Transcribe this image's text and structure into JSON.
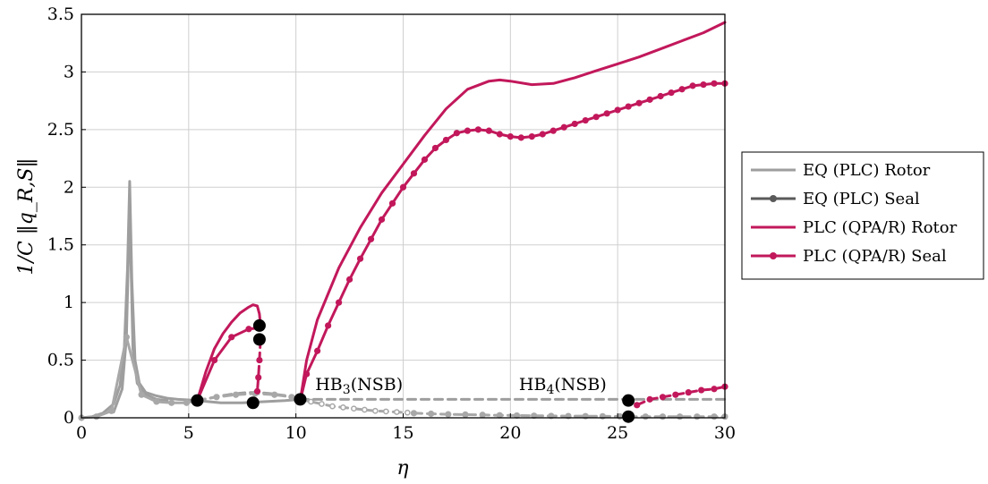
{
  "chart_data": {
    "type": "line",
    "xlabel": "η",
    "ylabel": "1/C ‖q_R,S‖",
    "xlim": [
      0,
      30
    ],
    "ylim": [
      0,
      3.5
    ],
    "x_ticks": [
      "0",
      "5",
      "10",
      "15",
      "20",
      "25",
      "30"
    ],
    "y_ticks": [
      "0",
      "0.5",
      "1",
      "1.5",
      "2",
      "2.5",
      "3",
      "3.5"
    ],
    "grid": true,
    "legend_position": "right",
    "colors": {
      "eq": "#9e9e9e",
      "eq_marker": "#5a5a5a",
      "plc": "#c2185b",
      "bifurcation": "#000000"
    },
    "legend": [
      {
        "label": "EQ (PLC) Rotor",
        "color": "#9e9e9e",
        "marker": false
      },
      {
        "label": "EQ (PLC) Seal",
        "color": "#5a5a5a",
        "marker": true
      },
      {
        "label": "PLC (QPA/R) Rotor",
        "color": "#c2185b",
        "marker": false
      },
      {
        "label": "PLC (QPA/R) Seal",
        "color": "#c2185b",
        "marker": true
      }
    ],
    "annotations": [
      {
        "base": "HB",
        "sub": "3",
        "suffix": "(NSB)",
        "x": 10.9,
        "y": 0.24
      },
      {
        "base": "HB",
        "sub": "4",
        "suffix": "(NSB)",
        "x": 20.4,
        "y": 0.24
      }
    ],
    "series": [
      {
        "name": "EQ (PLC) Rotor",
        "color": "#9e9e9e",
        "dashed": false,
        "markers": false,
        "x": [
          0,
          0.5,
          1,
          1.5,
          1.8,
          2.0,
          2.15,
          2.25,
          2.35,
          2.5,
          2.7,
          3,
          3.5,
          4,
          4.5,
          5,
          5.4
        ],
        "y": [
          0,
          0.01,
          0.04,
          0.12,
          0.28,
          0.6,
          1.3,
          2.05,
          1.2,
          0.5,
          0.3,
          0.22,
          0.19,
          0.17,
          0.16,
          0.155,
          0.15
        ]
      },
      {
        "name": "EQ (PLC) Rotor",
        "color": "#9e9e9e",
        "dashed": false,
        "markers": false,
        "x": [
          1.5,
          1.9,
          2.1,
          2.25,
          2.4,
          2.6,
          3,
          3.5,
          4
        ],
        "y": [
          0.05,
          0.25,
          0.7,
          1.85,
          0.6,
          0.3,
          0.2,
          0.16,
          0.15
        ]
      },
      {
        "name": "EQ (PLC) Rotor",
        "color": "#9e9e9e",
        "dashed": false,
        "markers": false,
        "x": [
          5.4,
          6.5,
          7.5,
          8.5,
          9.5,
          10.2
        ],
        "y": [
          0.15,
          0.13,
          0.13,
          0.14,
          0.15,
          0.16
        ]
      },
      {
        "name": "EQ (PLC) Rotor",
        "color": "#9e9e9e",
        "dashed": true,
        "markers": false,
        "x": [
          10.2,
          15,
          20,
          25,
          30
        ],
        "y": [
          0.16,
          0.16,
          0.16,
          0.16,
          0.16
        ]
      },
      {
        "name": "EQ (PLC) Rotor",
        "color": "#9e9e9e",
        "dashed": true,
        "markers": false,
        "x": [
          5.4,
          6.5,
          7.2,
          7.8,
          8.2,
          8.8,
          9.6,
          10.2
        ],
        "y": [
          0.15,
          0.19,
          0.21,
          0.22,
          0.22,
          0.21,
          0.19,
          0.16
        ]
      },
      {
        "name": "EQ (PLC) Seal",
        "color": "#a8a8a8",
        "dashed": false,
        "markers": true,
        "hollow": false,
        "x": [
          0,
          0.7,
          1.4,
          2.1,
          2.8,
          3.5,
          4.2,
          4.9,
          5.4
        ],
        "y": [
          0,
          0.01,
          0.06,
          0.7,
          0.2,
          0.14,
          0.13,
          0.13,
          0.15
        ]
      },
      {
        "name": "EQ (PLC) Seal",
        "color": "#a8a8a8",
        "dashed": true,
        "markers": true,
        "hollow": false,
        "x": [
          5.4,
          6.3,
          7.2,
          8.1,
          9.0,
          9.8,
          10.2
        ],
        "y": [
          0.15,
          0.18,
          0.2,
          0.21,
          0.2,
          0.18,
          0.16
        ]
      },
      {
        "name": "EQ (PLC) Seal",
        "color": "#a8a8a8",
        "dashed": true,
        "markers": true,
        "hollow": true,
        "x": [
          10.2,
          10.7,
          11.2,
          11.7,
          12.2,
          12.7,
          13.2,
          13.7,
          14.2,
          14.7,
          15.2
        ],
        "y": [
          0.16,
          0.14,
          0.12,
          0.1,
          0.09,
          0.08,
          0.07,
          0.06,
          0.055,
          0.05,
          0.045
        ]
      },
      {
        "name": "EQ (PLC) Seal",
        "color": "#a8a8a8",
        "dashed": true,
        "markers": true,
        "hollow": false,
        "x": [
          15.5,
          16.3,
          17.1,
          17.9,
          18.7,
          19.5,
          20.3,
          21.1,
          21.9,
          22.7,
          23.5,
          24.3,
          25.1
        ],
        "y": [
          0.04,
          0.035,
          0.03,
          0.028,
          0.025,
          0.022,
          0.02,
          0.018,
          0.016,
          0.015,
          0.014,
          0.013,
          0.012
        ]
      },
      {
        "name": "EQ (PLC) Seal",
        "color": "#a8a8a8",
        "dashed": true,
        "markers": true,
        "hollow": false,
        "x": [
          25.5,
          26.3,
          27.1,
          27.9,
          28.7,
          29.5,
          30
        ],
        "y": [
          0.01,
          0.01,
          0.01,
          0.01,
          0.01,
          0.01,
          0.01
        ]
      },
      {
        "name": "PLC (QPA/R) Rotor",
        "color": "#c2185b",
        "dashed": false,
        "markers": false,
        "x": [
          5.4,
          5.8,
          6.2,
          6.6,
          7.0,
          7.4,
          7.8,
          8.0,
          8.2,
          8.3,
          8.35
        ],
        "y": [
          0.15,
          0.4,
          0.6,
          0.73,
          0.83,
          0.91,
          0.96,
          0.98,
          0.97,
          0.9,
          0.8
        ]
      },
      {
        "name": "PLC (QPA/R) Rotor",
        "color": "#c2185b",
        "dashed": false,
        "markers": false,
        "x": [
          10.2,
          10.5,
          11,
          12,
          13,
          14,
          15,
          16,
          17,
          18,
          19,
          19.5,
          20,
          21,
          22,
          23,
          24,
          25,
          26,
          27,
          28,
          29,
          30
        ],
        "y": [
          0.15,
          0.5,
          0.85,
          1.3,
          1.65,
          1.95,
          2.2,
          2.45,
          2.68,
          2.85,
          2.92,
          2.93,
          2.92,
          2.89,
          2.9,
          2.95,
          3.01,
          3.07,
          3.13,
          3.2,
          3.27,
          3.34,
          3.43
        ]
      },
      {
        "name": "PLC (QPA/R) Seal",
        "color": "#c2185b",
        "dashed": false,
        "markers": true,
        "x": [
          5.4,
          6.2,
          7.0,
          7.8,
          8.3
        ],
        "y": [
          0.15,
          0.5,
          0.7,
          0.77,
          0.78
        ]
      },
      {
        "name": "PLC (QPA/R) Seal",
        "color": "#c2185b",
        "dashed": true,
        "markers": true,
        "x": [
          8.35,
          8.3,
          8.25,
          8.2
        ],
        "y": [
          0.68,
          0.5,
          0.35,
          0.23
        ]
      },
      {
        "name": "PLC (QPA/R) Seal",
        "color": "#c2185b",
        "dashed": false,
        "markers": true,
        "x": [
          10.2,
          10.5,
          11.0,
          11.5,
          12.0,
          12.5,
          13.0,
          13.5,
          14.0,
          14.5,
          15.0,
          15.5,
          16.0,
          16.5,
          17.0,
          17.5,
          18.0,
          18.5,
          19.0,
          19.5,
          20.0,
          20.5,
          21.0,
          21.5,
          22.0,
          22.5,
          23.0,
          23.5,
          24.0,
          24.5,
          25.0,
          25.5,
          26.0,
          26.5,
          27.0,
          27.5,
          28.0,
          28.5,
          29.0,
          29.5,
          30.0
        ],
        "y": [
          0.15,
          0.38,
          0.58,
          0.8,
          1.0,
          1.2,
          1.38,
          1.55,
          1.72,
          1.86,
          2.0,
          2.12,
          2.24,
          2.34,
          2.41,
          2.47,
          2.49,
          2.5,
          2.49,
          2.46,
          2.44,
          2.43,
          2.44,
          2.46,
          2.49,
          2.52,
          2.55,
          2.58,
          2.61,
          2.64,
          2.67,
          2.7,
          2.73,
          2.76,
          2.79,
          2.82,
          2.85,
          2.88,
          2.89,
          2.9,
          2.9
        ]
      },
      {
        "name": "PLC (QPA/R) Seal",
        "color": "#c2185b",
        "dashed": true,
        "markers": true,
        "x": [
          25.9,
          26.5,
          27.1,
          27.7,
          28.3,
          28.9,
          29.5,
          30
        ],
        "y": [
          0.11,
          0.16,
          0.18,
          0.2,
          0.22,
          0.24,
          0.25,
          0.27
        ]
      }
    ],
    "bifurcation_points": [
      {
        "x": 5.4,
        "y": 0.15
      },
      {
        "x": 8.0,
        "y": 0.13
      },
      {
        "x": 8.3,
        "y": 0.8
      },
      {
        "x": 8.3,
        "y": 0.68
      },
      {
        "x": 10.2,
        "y": 0.16
      },
      {
        "x": 25.5,
        "y": 0.15
      },
      {
        "x": 25.5,
        "y": 0.01
      }
    ]
  }
}
